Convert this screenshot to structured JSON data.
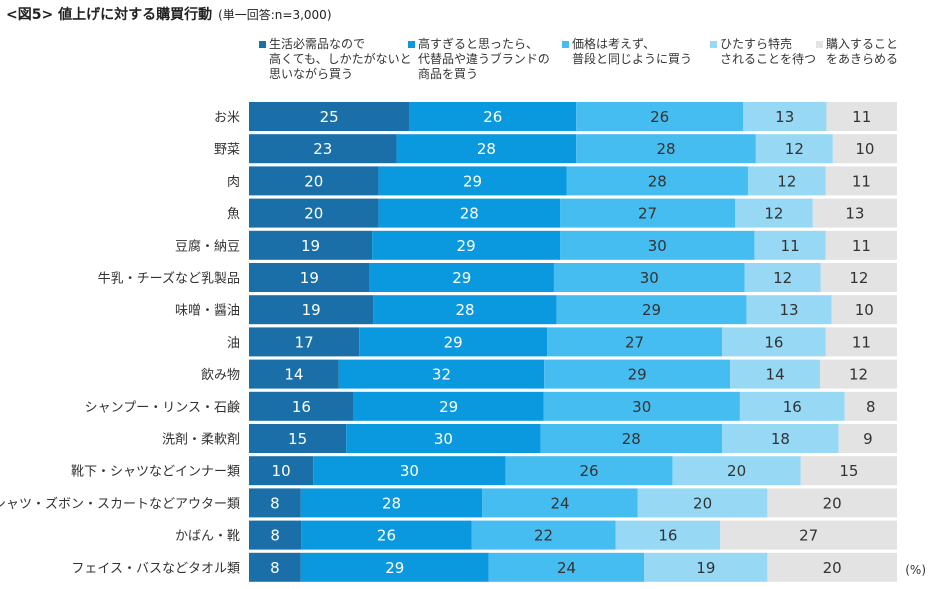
{
  "title": "<図5> 値上げに対する購買行動",
  "subtitle": "(単一回答:n=3,000)",
  "unit": "(%)",
  "chart_data": {
    "type": "bar",
    "orientation": "horizontal",
    "stacked": "100%",
    "legend_position": "top",
    "categories": [
      "お米",
      "野菜",
      "肉",
      "魚",
      "豆腐・納豆",
      "牛乳・チーズなど乳製品",
      "味噌・醤油",
      "油",
      "飲み物",
      "シャンプー・リンス・石鹸",
      "洗剤・柔軟剤",
      "靴下・シャツなどインナー類",
      "シャツ・ズボン・スカートなどアウター類",
      "かばん・靴",
      "フェイス・バスなどタオル類"
    ],
    "series": [
      {
        "name": "生活必需品なので高くても、しかたがないと思いながら買う",
        "name_lines": [
          "生活必需品なので",
          "高くても、しかたがないと",
          "思いながら買う"
        ],
        "color": "#1a6fa8",
        "values": [
          25,
          23,
          20,
          20,
          19,
          19,
          19,
          17,
          14,
          16,
          15,
          10,
          8,
          8,
          8
        ]
      },
      {
        "name": "高すぎると思ったら、代替品や違うブランドの商品を買う",
        "name_lines": [
          "高すぎると思ったら、",
          "代替品や違うブランドの",
          "商品を買う"
        ],
        "color": "#0a99df",
        "values": [
          26,
          28,
          29,
          28,
          29,
          29,
          28,
          29,
          32,
          29,
          30,
          30,
          28,
          26,
          29
        ]
      },
      {
        "name": "価格は考えず、普段と同じように買う",
        "name_lines": [
          "価格は考えず、",
          "普段と同じように買う"
        ],
        "color": "#45bdf0",
        "values": [
          26,
          28,
          28,
          27,
          30,
          30,
          29,
          27,
          29,
          30,
          28,
          26,
          24,
          22,
          24
        ]
      },
      {
        "name": "ひたすら特売されることを待つ",
        "name_lines": [
          "ひたすら特売",
          "されることを待つ"
        ],
        "color": "#97d8f5",
        "values": [
          13,
          12,
          12,
          12,
          11,
          12,
          13,
          16,
          14,
          16,
          18,
          20,
          20,
          16,
          19
        ]
      },
      {
        "name": "購入することをあきらめる",
        "name_lines": [
          "購入すること",
          "をあきらめる"
        ],
        "color": "#e3e3e3",
        "values": [
          11,
          10,
          11,
          13,
          11,
          12,
          10,
          11,
          12,
          8,
          9,
          15,
          20,
          27,
          20
        ]
      }
    ]
  }
}
